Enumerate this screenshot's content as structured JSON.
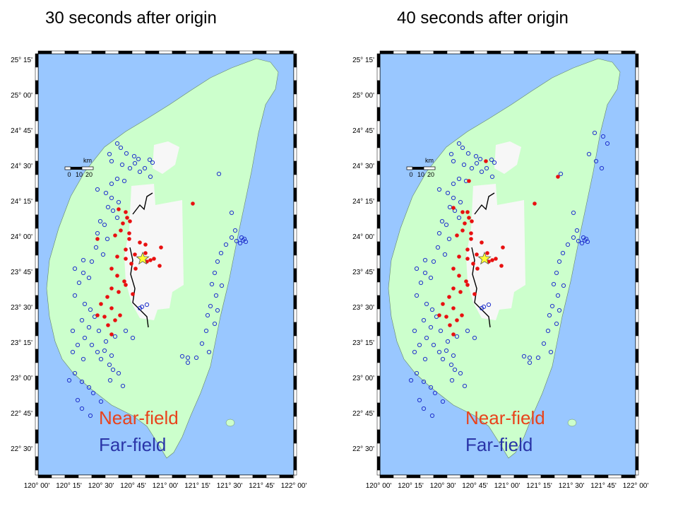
{
  "panels": [
    {
      "title": "30 seconds after origin",
      "legend": {
        "near": "Near-field",
        "far": "Far-field"
      },
      "near_count_note": "",
      "scale_bar": {
        "unit": "km",
        "ticks": [
          "0",
          "10",
          "20"
        ]
      },
      "lat_labels": [
        "25° 15'",
        "25° 00'",
        "24° 45'",
        "24° 30'",
        "24° 15'",
        "24° 00'",
        "23° 45'",
        "23° 30'",
        "23° 15'",
        "23° 00'",
        "22° 45'",
        "22° 30'"
      ],
      "lon_labels": [
        "120° 00'",
        "120° 15'",
        "120° 30'",
        "120° 45'",
        "121° 00'",
        "121° 15'",
        "121° 30'",
        "121° 45'",
        "122° 00'"
      ]
    },
    {
      "title": "40 seconds after origin",
      "legend": {
        "near": "Near-field",
        "far": "Far-field"
      },
      "scale_bar": {
        "unit": "km",
        "ticks": [
          "0",
          "10",
          "20"
        ]
      },
      "lat_labels": [
        "25° 15'",
        "25° 00'",
        "24° 45'",
        "24° 30'",
        "24° 15'",
        "24° 00'",
        "23° 45'",
        "23° 30'",
        "23° 15'",
        "23° 00'",
        "22° 45'",
        "22° 30'"
      ],
      "lon_labels": [
        "120° 00'",
        "120° 15'",
        "120° 30'",
        "120° 45'",
        "121° 00'",
        "121° 15'",
        "121° 30'",
        "121° 45'",
        "122° 00'"
      ]
    }
  ],
  "colors": {
    "sea": "#99c7ff",
    "land": "#ccffcc",
    "near_field": "#e81010",
    "far_field": "#2233cc",
    "epicenter": "#ffff33",
    "shaded_zone": "#f7f7f7"
  },
  "icons": {
    "epicenter": "star-icon",
    "near_station": "filled-circle-icon",
    "far_station": "open-circle-icon"
  }
}
